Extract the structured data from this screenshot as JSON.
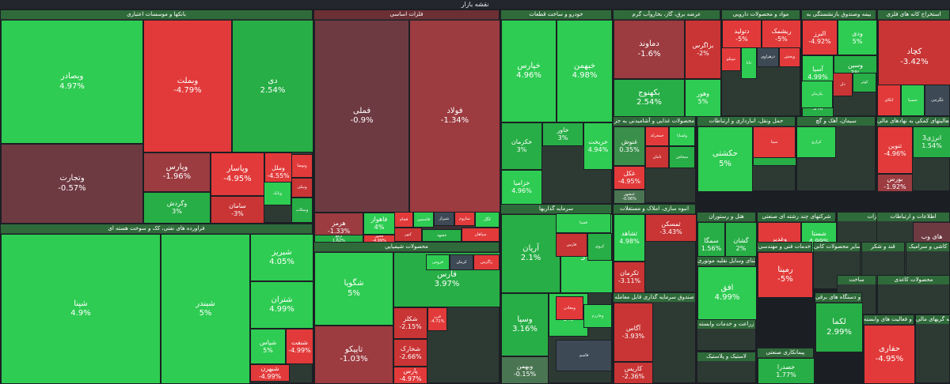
{
  "header": {
    "title": "نقشه بازار"
  },
  "colors": {
    "strong_green": "#2ecc52",
    "green": "#27ae46",
    "muted_green": "#3a8f4a",
    "strong_red": "#e23a3a",
    "red": "#c93434",
    "muted_red": "#9c3b40",
    "neutral": "#3d4a55"
  },
  "sectors": {
    "banks": {
      "title": "بانکها و موسسات اعتباری",
      "tiles": [
        {
          "name": "وبصادر",
          "pct": "4.97%"
        },
        {
          "name": "وبملت",
          "pct": "-4.79%"
        },
        {
          "name": "دی",
          "pct": "2.54%"
        },
        {
          "name": "وتجارت",
          "pct": "-0.57%"
        },
        {
          "name": "وپارس",
          "pct": "-1.96%"
        },
        {
          "name": "وپاسار",
          "pct": "-4.95%"
        },
        {
          "name": "وملل",
          "pct": "-4.55%"
        },
        {
          "name": "وگردش",
          "pct": "3%"
        },
        {
          "name": "سامان",
          "pct": "-3%"
        }
      ]
    },
    "oil": {
      "title": "فراورده های نفتی، کک و سوخت هسته ای",
      "tiles": [
        {
          "name": "شپنا",
          "pct": "4.9%"
        },
        {
          "name": "شبندر",
          "pct": "5%"
        },
        {
          "name": "شبریز",
          "pct": "4.05%"
        },
        {
          "name": "شتران",
          "pct": "4.99%"
        },
        {
          "name": "شپاس",
          "pct": "5%"
        },
        {
          "name": "شبهرن",
          "pct": "-4.99%"
        },
        {
          "name": "شنفت",
          "pct": "-4.99%"
        }
      ]
    },
    "metals": {
      "title": "فلزات اساسی",
      "tiles": [
        {
          "name": "فملی",
          "pct": "-0.9%"
        },
        {
          "name": "فولاد",
          "pct": "-1.34%"
        },
        {
          "name": "هرمز",
          "pct": "-1.33%"
        },
        {
          "name": "فاهواز",
          "pct": "4%"
        },
        {
          "name": "فخوز",
          "pct": "-4.99%"
        },
        {
          "name": "ارفع",
          "pct": "1.62%"
        }
      ]
    },
    "chemical": {
      "title": "محصولات شیمیایی",
      "tiles": [
        {
          "name": "شگویا",
          "pct": "5%"
        },
        {
          "name": "فارس",
          "pct": "3.97%"
        },
        {
          "name": "تاپیکو",
          "pct": "-1.03%"
        },
        {
          "name": "شکلر",
          "pct": "-2.15%"
        },
        {
          "name": "قرن",
          "pct": "-4.71%"
        },
        {
          "name": "شخارک",
          "pct": "-2.66%"
        },
        {
          "name": "پارس",
          "pct": "-4.97%"
        }
      ]
    },
    "auto": {
      "title": "خودرو و ساخت قطعات",
      "tiles": [
        {
          "name": "خپارس",
          "pct": "4.96%"
        },
        {
          "name": "خبهمن",
          "pct": "4.98%"
        },
        {
          "name": "خکرمان",
          "pct": "3%"
        },
        {
          "name": "خاور",
          "pct": "3%"
        },
        {
          "name": "خریخت",
          "pct": "4.94%"
        },
        {
          "name": "خزامیا",
          "pct": "4.96%"
        }
      ]
    },
    "investment": {
      "title": "سرمایه گذاریها",
      "tiles": [
        {
          "name": "آریان",
          "pct": "2.1%"
        },
        {
          "name": "صبا",
          "pct": "5%"
        },
        {
          "name": "وسپا",
          "pct": "3.16%"
        },
        {
          "name": "گوهران",
          "pct": "5%"
        },
        {
          "name": "وبهمن",
          "pct": "-0.15%"
        }
      ]
    },
    "utility": {
      "title": "عرضه برق، گاز، بخاروآب گرم",
      "tiles": [
        {
          "name": "دماوند",
          "pct": "-1.6%"
        },
        {
          "name": "بزاگرس",
          "pct": "-2%"
        },
        {
          "name": "بکهنوج",
          "pct": "2.54%"
        },
        {
          "name": "وهور",
          "pct": "5%"
        }
      ]
    },
    "pharma": {
      "title": "مواد و محصولات دارویی",
      "tiles": [
        {
          "name": "دتولید",
          "pct": "-5%"
        },
        {
          "name": "ریشمک",
          "pct": "-5%"
        }
      ]
    },
    "insurance": {
      "title": "بیمه وصندوق بازنشستگی به",
      "tiles": [
        {
          "name": "البرز",
          "pct": "-4.92%"
        },
        {
          "name": "ودی",
          "pct": "5%"
        },
        {
          "name": "آسیا",
          "pct": "4.99%"
        },
        {
          "name": "وسین",
          "pct": "3%"
        },
        {
          "name": "وحافظ",
          "pct": "3%"
        }
      ]
    },
    "mining": {
      "title": "استخراج کانه های فلزی",
      "tiles": [
        {
          "name": "کچاد",
          "pct": "-3.42%"
        }
      ]
    },
    "food": {
      "title": "محصولات غذایی و آشامیدنی به جز",
      "tiles": [
        {
          "name": "غنوش",
          "pct": "0.35%"
        },
        {
          "name": "خوتفا",
          "pct": "-4.98%"
        },
        {
          "name": "غکل",
          "pct": "-4.95%"
        },
        {
          "name": "غبشهر",
          "pct": "-0.06%"
        }
      ]
    },
    "transport": {
      "title": "حمل ونقل، انبارداری و ارتباطات",
      "tiles": [
        {
          "name": "حکشتی",
          "pct": "5%"
        },
        {
          "name": "حکشتیح",
          "pct": "3.64%"
        }
      ]
    },
    "cement": {
      "title": "سیمان، آهک و گچ"
    },
    "otherfin": {
      "title": "فعالیتهای کمکی به نهادهای مالی",
      "tiles": [
        {
          "name": "انرژی3",
          "pct": "1.54%"
        },
        {
          "name": "تنوین",
          "pct": "-4.96%"
        },
        {
          "name": "بورس",
          "pct": "-1.92%"
        }
      ]
    },
    "realestate": {
      "title": "انبوه سازی، املاک و مستغلات",
      "tiles": [
        {
          "name": "ثشاهد",
          "pct": "4.98%"
        },
        {
          "name": "ثمسکن",
          "pct": "-3.43%"
        },
        {
          "name": "ثکرمان",
          "pct": "-3.11%"
        }
      ]
    },
    "hotel": {
      "title": "هتل و رستوران",
      "tiles": [
        {
          "name": "سمگا",
          "pct": "1.56%"
        },
        {
          "name": "گشان",
          "pct": "2%"
        },
        {
          "name": "سمگاح",
          "pct": ""
        }
      ]
    },
    "multi": {
      "title": "شرکتهای چند رشته ای صنعتی",
      "tiles": [
        {
          "name": "وغدیر",
          "pct": "-4.98%"
        },
        {
          "name": "شستا",
          "pct": "4.99%"
        }
      ]
    },
    "machinery": {
      "title": "ماشین آلات و تجهیزات"
    },
    "it": {
      "title": "اطلاعات و ارتباطات",
      "tiles": [
        {
          "name": "های وب",
          "pct": "-0.22%"
        }
      ]
    },
    "retail": {
      "title": "خرده فروشی باستثنای وسایل نقلیه موتوری",
      "tiles": [
        {
          "name": "افق",
          "pct": "4.99%"
        }
      ]
    },
    "fund": {
      "title": "صندوق سرمایه گذاری قابل معامله",
      "tiles": [
        {
          "name": "آگاس",
          "pct": "-3.93%"
        },
        {
          "name": "کاریس",
          "pct": "-2.36%"
        }
      ]
    },
    "engineering": {
      "title": "خدمات فنی و مهندسی",
      "tiles": [
        {
          "name": "رمپنا",
          "pct": "-5%"
        }
      ]
    },
    "minerals": {
      "title": "سایر محصولات کانی"
    },
    "sugar": {
      "title": "قند و شکر"
    },
    "agri": {
      "title": "زراعت و خدمات وابسته"
    },
    "nonmetal": {
      "title": "کاشی و سرامیک"
    },
    "construction": {
      "title": "ساخت"
    },
    "paper": {
      "title": "محصولات کاغذی"
    },
    "contractor": {
      "title": "پیمانکاری صنعتی",
      "tiles": [
        {
          "name": "خصدرا",
          "pct": "1.77%"
        }
      ]
    },
    "rubber": {
      "title": "لاستیک و پلاستیک"
    },
    "electric": {
      "title": "ماشین آلات و دستگاه های برقی",
      "tiles": [
        {
          "name": "لکما",
          "pct": "2.99%"
        }
      ]
    },
    "bank2": {
      "title": "رایانه و فعالیت های وابسته",
      "tiles": [
        {
          "name": "حفاری",
          "pct": "-4.95%"
        }
      ]
    },
    "other": {
      "title": "سایر واسطه گریهای مالی"
    }
  },
  "small_labels": [
    "وتوصا",
    "وبانک",
    "ونیکی",
    "وسکاب",
    "فجام",
    "فاسمین",
    "شیراز",
    "ساروم",
    "کگل",
    "کنور",
    "غشهد",
    "سپاهان",
    "فروس",
    "کرمان",
    "زاگرس",
    "فسپا",
    "فارس",
    "کروی",
    "ومعادن",
    "وخارزم",
    "قاسم",
    "خمحرکه",
    "ولساپا",
    "ثامان",
    "سخاش",
    "تیپیکو",
    "دانا",
    "دزهراوی",
    "وپخش",
    "پکرمان",
    "دلر",
    "کوثر",
    "اتکای",
    "شسپا",
    "غگرجی",
    "سیتا",
    "کرازی"
  ]
}
